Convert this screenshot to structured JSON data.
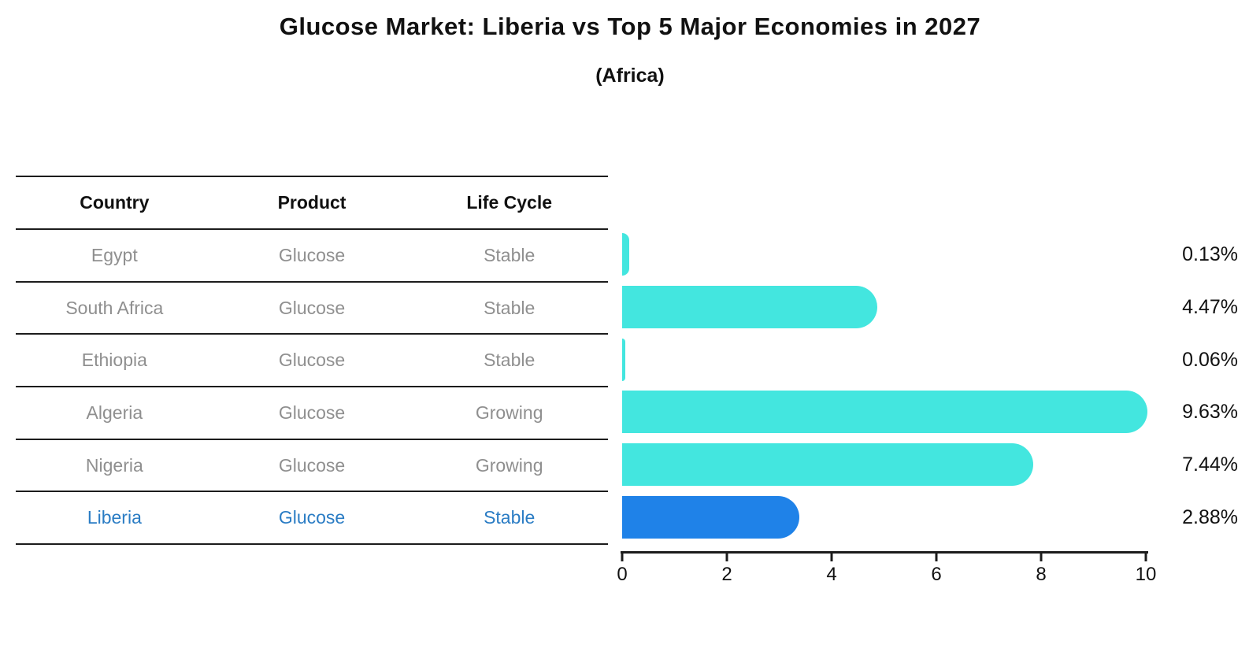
{
  "title": "Glucose Market: Liberia vs Top 5 Major Economies in 2027",
  "subtitle": "(Africa)",
  "table": {
    "headers": [
      "Country",
      "Product",
      "Life Cycle"
    ],
    "rows": [
      {
        "country": "Egypt",
        "product": "Glucose",
        "life_cycle": "Stable",
        "highlight": false
      },
      {
        "country": "South Africa",
        "product": "Glucose",
        "life_cycle": "Stable",
        "highlight": false
      },
      {
        "country": "Ethiopia",
        "product": "Glucose",
        "life_cycle": "Stable",
        "highlight": false
      },
      {
        "country": "Algeria",
        "product": "Glucose",
        "life_cycle": "Growing",
        "highlight": false
      },
      {
        "country": "Nigeria",
        "product": "Glucose",
        "life_cycle": "Growing",
        "highlight": false
      },
      {
        "country": "Liberia",
        "product": "Glucose",
        "life_cycle": "Stable",
        "highlight": true
      }
    ]
  },
  "chart_data": {
    "type": "bar",
    "orientation": "horizontal",
    "title": "Glucose Market: Liberia vs Top 5 Major Economies in 2027 (Africa)",
    "categories": [
      "Egypt",
      "South Africa",
      "Ethiopia",
      "Algeria",
      "Nigeria",
      "Liberia"
    ],
    "values": [
      0.13,
      4.47,
      0.06,
      9.63,
      7.44,
      2.88
    ],
    "value_labels": [
      "0.13%",
      "4.47%",
      "0.06%",
      "9.63%",
      "7.44%",
      "2.88%"
    ],
    "unit": "%",
    "xlim": [
      0,
      10
    ],
    "x_ticks": [
      0,
      2,
      4,
      6,
      8,
      10
    ],
    "x_tick_labels": [
      "0",
      "2",
      "4",
      "6",
      "8",
      "10"
    ],
    "grid": false,
    "legend": false,
    "highlight_category": "Liberia",
    "colors": {
      "bar": "#43e6df",
      "highlight_bar": "#1f82e8",
      "highlight_text": "#2a7cc4",
      "text": "#111111",
      "muted_text": "#8f8f8f",
      "axis": "#1c1c1c"
    }
  }
}
